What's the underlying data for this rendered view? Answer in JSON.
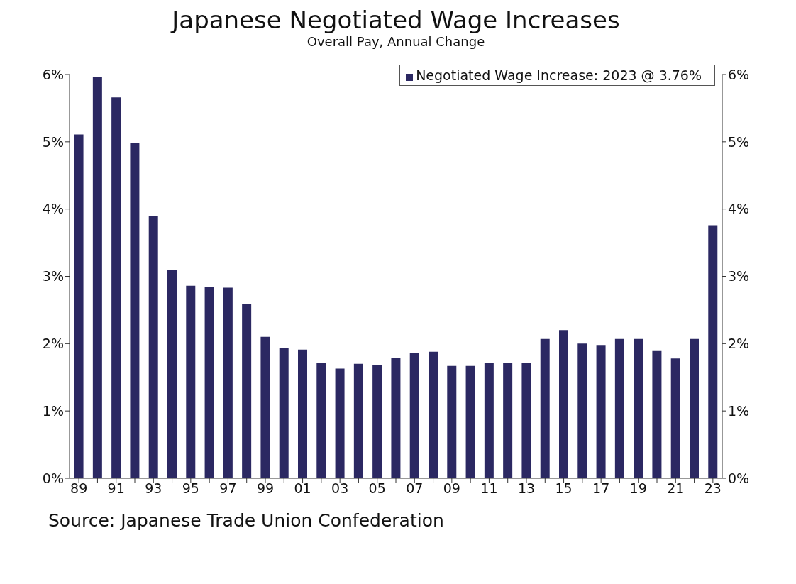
{
  "chart_data": {
    "type": "bar",
    "title": "Japanese Negotiated Wage Increases",
    "subtitle": "Overall Pay, Annual Change",
    "categories": [
      "89",
      null,
      "91",
      null,
      "93",
      null,
      "95",
      null,
      "97",
      null,
      "99",
      null,
      "01",
      null,
      "03",
      null,
      "05",
      null,
      "07",
      null,
      "09",
      null,
      "11",
      null,
      "13",
      null,
      "15",
      null,
      "17",
      null,
      "19",
      null,
      "21",
      null,
      "23"
    ],
    "series": [
      {
        "name": "Negotiated Wage Increase: 2023 @ 3.76%",
        "color": "#2b2862",
        "values": [
          5.11,
          5.96,
          5.66,
          4.98,
          3.9,
          3.1,
          2.86,
          2.84,
          2.83,
          2.59,
          2.1,
          1.94,
          1.91,
          1.72,
          1.63,
          1.7,
          1.68,
          1.79,
          1.86,
          1.88,
          1.67,
          1.67,
          1.71,
          1.72,
          1.71,
          2.07,
          2.2,
          2.0,
          1.98,
          2.07,
          2.07,
          1.9,
          1.78,
          2.07,
          3.76
        ]
      }
    ],
    "ylim": [
      0,
      6
    ],
    "yticks": [
      {
        "value": 0,
        "label": "0%"
      },
      {
        "value": 1,
        "label": "1%"
      },
      {
        "value": 2,
        "label": "2%"
      },
      {
        "value": 3,
        "label": "3%"
      },
      {
        "value": 4,
        "label": "4%"
      },
      {
        "value": 5,
        "label": "5%"
      },
      {
        "value": 6,
        "label": "6%"
      }
    ],
    "y2lim": [
      0,
      6
    ],
    "y2ticks": [
      {
        "value": 0,
        "label": "0%"
      },
      {
        "value": 1,
        "label": "1%"
      },
      {
        "value": 2,
        "label": "2%"
      },
      {
        "value": 3,
        "label": "3%"
      },
      {
        "value": 4,
        "label": "4%"
      },
      {
        "value": 5,
        "label": "5%"
      },
      {
        "value": 6,
        "label": "6%"
      }
    ],
    "grid": false,
    "legend": "top right",
    "annotations": [
      "Source: Japanese Trade Union Confederation"
    ]
  }
}
